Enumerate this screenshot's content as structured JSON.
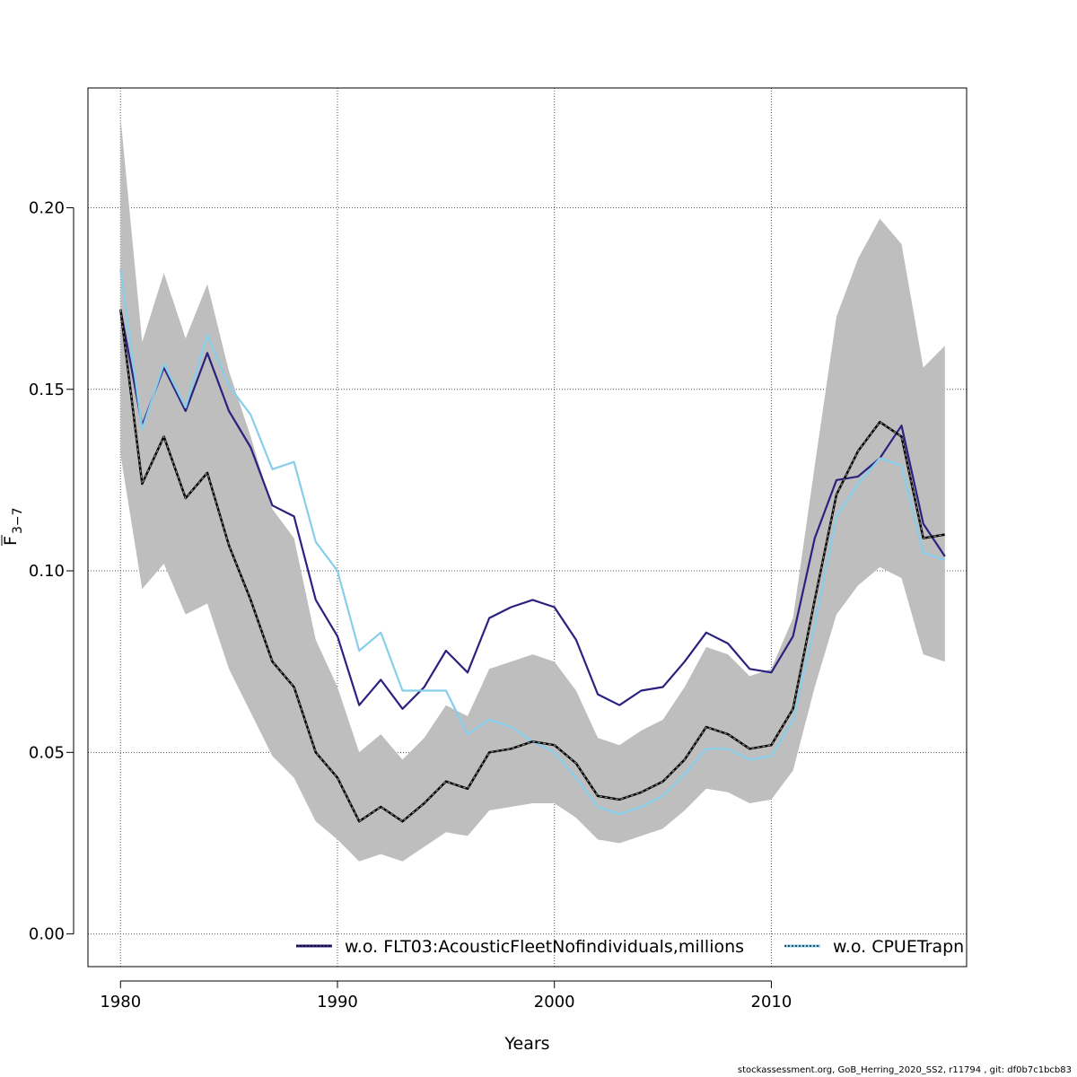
{
  "chart_data": {
    "type": "line",
    "xlabel": "Years",
    "ylabel_main": "F",
    "ylabel_sub": "3−7",
    "xlim": [
      1978.5,
      2019
    ],
    "ylim": [
      -0.009,
      0.233
    ],
    "x_ticks": [
      1980,
      1990,
      2000,
      2010
    ],
    "y_ticks": [
      0.0,
      0.05,
      0.1,
      0.15,
      0.2
    ],
    "y_tick_labels": [
      "0.00",
      "0.05",
      "0.10",
      "0.15",
      "0.20"
    ],
    "grid": true,
    "legend_position": "bottom",
    "colors": {
      "band": "#bebebe",
      "base": "#1a1a1a",
      "flt03": "#2b2280",
      "cpue": "#87ceeb",
      "grid": "#555555"
    },
    "x": [
      1980,
      1981,
      1982,
      1983,
      1984,
      1985,
      1986,
      1987,
      1988,
      1989,
      1990,
      1991,
      1992,
      1993,
      1994,
      1995,
      1996,
      1997,
      1998,
      1999,
      2000,
      2001,
      2002,
      2003,
      2004,
      2005,
      2006,
      2007,
      2008,
      2009,
      2010,
      2011,
      2012,
      2013,
      2014,
      2015,
      2016,
      2017,
      2018
    ],
    "band_upper": [
      0.225,
      0.163,
      0.182,
      0.164,
      0.179,
      0.155,
      0.137,
      0.117,
      0.109,
      0.081,
      0.068,
      0.05,
      0.055,
      0.048,
      0.054,
      0.063,
      0.06,
      0.073,
      0.075,
      0.077,
      0.075,
      0.067,
      0.054,
      0.052,
      0.056,
      0.059,
      0.068,
      0.079,
      0.077,
      0.071,
      0.073,
      0.087,
      0.129,
      0.17,
      0.186,
      0.197,
      0.19,
      0.156,
      0.162
    ],
    "band_lower": [
      0.132,
      0.095,
      0.102,
      0.088,
      0.091,
      0.073,
      0.061,
      0.049,
      0.043,
      0.031,
      0.026,
      0.02,
      0.022,
      0.02,
      0.024,
      0.028,
      0.027,
      0.034,
      0.035,
      0.036,
      0.036,
      0.032,
      0.026,
      0.025,
      0.027,
      0.029,
      0.034,
      0.04,
      0.039,
      0.036,
      0.037,
      0.045,
      0.068,
      0.088,
      0.096,
      0.101,
      0.098,
      0.077,
      0.075
    ],
    "series": [
      {
        "key": "base",
        "values": [
          0.172,
          0.124,
          0.137,
          0.12,
          0.127,
          0.107,
          0.092,
          0.075,
          0.068,
          0.05,
          0.043,
          0.031,
          0.035,
          0.031,
          0.036,
          0.042,
          0.04,
          0.05,
          0.051,
          0.053,
          0.052,
          0.047,
          0.038,
          0.037,
          0.039,
          0.042,
          0.048,
          0.057,
          0.055,
          0.051,
          0.052,
          0.062,
          0.092,
          0.121,
          0.133,
          0.141,
          0.137,
          0.109,
          0.11
        ]
      },
      {
        "key": "flt03",
        "name": "w.o. FLT03:AcousticFleetNofindividuals,millions",
        "values": [
          0.172,
          0.14,
          0.156,
          0.144,
          0.16,
          0.144,
          0.134,
          0.118,
          0.115,
          0.092,
          0.082,
          0.063,
          0.07,
          0.062,
          0.068,
          0.078,
          0.072,
          0.087,
          0.09,
          0.092,
          0.09,
          0.081,
          0.066,
          0.063,
          0.067,
          0.068,
          0.075,
          0.083,
          0.08,
          0.073,
          0.072,
          0.082,
          0.109,
          0.125,
          0.126,
          0.131,
          0.14,
          0.113,
          0.104
        ]
      },
      {
        "key": "cpue",
        "name": "w.o. CPUETrapn",
        "values": [
          0.183,
          0.139,
          0.157,
          0.145,
          0.165,
          0.151,
          0.143,
          0.128,
          0.13,
          0.108,
          0.1,
          0.078,
          0.083,
          0.067,
          0.067,
          0.067,
          0.055,
          0.059,
          0.057,
          0.053,
          0.05,
          0.043,
          0.035,
          0.033,
          0.035,
          0.038,
          0.044,
          0.051,
          0.051,
          0.048,
          0.049,
          0.059,
          0.085,
          0.115,
          0.124,
          0.131,
          0.129,
          0.105,
          0.103
        ]
      }
    ]
  },
  "footer": "stockassessment.org, GoB_Herring_2020_SS2, r11794 , git: df0b7c1bcb83"
}
